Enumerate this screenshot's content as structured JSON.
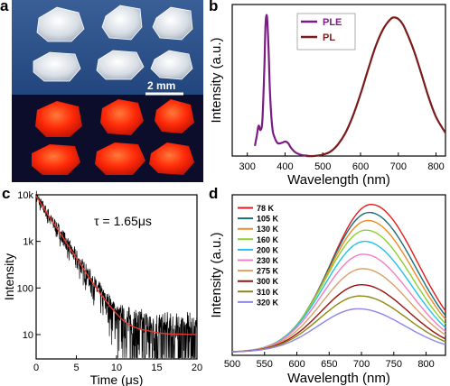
{
  "figure": {
    "panel_labels": [
      "a",
      "b",
      "c",
      "d"
    ]
  },
  "panel_a": {
    "scale_bar_label": "2 mm",
    "colors": {
      "top_background": "#2c4f86",
      "bottom_background": "#0b0d2a",
      "crystal_white": "#eef2f6",
      "crystal_red": "#ff2a08"
    }
  },
  "chart_data": [
    {
      "panel": "b",
      "type": "line",
      "xlabel": "Wavelength (nm)",
      "ylabel": "Intensity (a.u.)",
      "xlim": [
        260,
        825
      ],
      "ylim": [
        0,
        1.05
      ],
      "xticks": [
        300,
        400,
        500,
        600,
        700,
        800
      ],
      "yticks_visible": false,
      "grid": false,
      "legend_placement": "top-center",
      "series": [
        {
          "name": "PLE",
          "color": "#7b1c85",
          "x": [
            320,
            325,
            330,
            335,
            340,
            345,
            348,
            352,
            356,
            360,
            366,
            372,
            380,
            390,
            400,
            408,
            415,
            425,
            435,
            445,
            455,
            465
          ],
          "y": [
            0.07,
            0.14,
            0.21,
            0.18,
            0.25,
            0.6,
            0.9,
            0.97,
            0.76,
            0.44,
            0.2,
            0.13,
            0.09,
            0.09,
            0.1,
            0.09,
            0.06,
            0.03,
            0.015,
            0.007,
            0.003,
            0.0
          ]
        },
        {
          "name": "PL",
          "color": "#7a1a1a",
          "x": [
            455,
            475,
            500,
            520,
            540,
            560,
            580,
            600,
            620,
            640,
            660,
            680,
            690,
            700,
            710,
            720,
            740,
            760,
            780,
            800,
            825
          ],
          "y": [
            0.0,
            0.0,
            0.01,
            0.03,
            0.08,
            0.16,
            0.28,
            0.43,
            0.6,
            0.76,
            0.88,
            0.95,
            0.96,
            0.95,
            0.92,
            0.87,
            0.74,
            0.58,
            0.41,
            0.27,
            0.16
          ]
        }
      ]
    },
    {
      "panel": "c",
      "type": "line",
      "xlabel": "Time (μs)",
      "ylabel": "Intensity",
      "yscale": "log",
      "xlim": [
        0,
        20
      ],
      "ylim": [
        3,
        10000
      ],
      "xticks": [
        0,
        5,
        10,
        15,
        20
      ],
      "yticks": [
        10,
        100,
        1000,
        10000
      ],
      "yticklabels": [
        "10",
        "100",
        "1k",
        "10k"
      ],
      "annotation": "τ = 1.65μs",
      "grid": false,
      "series": [
        {
          "kind": "noisy-data",
          "color": "#000000",
          "x": [
            0,
            1,
            2,
            3,
            4,
            5,
            6,
            7,
            8,
            9,
            10,
            11,
            12,
            13,
            14,
            15,
            16,
            17,
            18,
            19,
            20
          ],
          "y": [
            9500,
            5000,
            2700,
            1500,
            800,
            440,
            240,
            132,
            75,
            45,
            28,
            19,
            15,
            13,
            12,
            11,
            10.5,
            10.3,
            10.2,
            10.1,
            10
          ],
          "noise_band": [
            0.45,
            0.5,
            0.55,
            0.6,
            0.65,
            0.7,
            0.75,
            0.8,
            0.9,
            1.0,
            1.2,
            1.5,
            2.0,
            2.3,
            2.4,
            2.5,
            2.5,
            2.5,
            2.5,
            2.5,
            2.5
          ]
        },
        {
          "kind": "fit",
          "color": "#e8372e",
          "x": [
            0,
            1,
            2,
            3,
            4,
            5,
            6,
            7,
            8,
            9,
            10,
            11,
            12,
            13,
            14,
            15,
            16,
            17,
            18,
            19,
            20
          ],
          "y": [
            9500,
            5000,
            2700,
            1500,
            800,
            440,
            240,
            132,
            75,
            45,
            28,
            19,
            15,
            13,
            12,
            11,
            10.5,
            10.3,
            10.2,
            10.1,
            10
          ]
        }
      ]
    },
    {
      "panel": "d",
      "type": "line",
      "xlabel": "Wavelength (nm)",
      "ylabel": "Intensity (a.u.)",
      "xlim": [
        500,
        830
      ],
      "ylim": [
        0,
        1.0
      ],
      "xticks": [
        500,
        550,
        600,
        650,
        700,
        750,
        800
      ],
      "yticks_visible": false,
      "grid": false,
      "legend_placement": "top-left",
      "series": [
        {
          "name": "78 K",
          "color": "#e31a1c",
          "peak_x": 715,
          "peak_y": 0.92
        },
        {
          "name": "105 K",
          "color": "#1a6e7a",
          "peak_x": 712,
          "peak_y": 0.87
        },
        {
          "name": "130 K",
          "color": "#f08a24",
          "peak_x": 710,
          "peak_y": 0.82
        },
        {
          "name": "160 K",
          "color": "#8bd12d",
          "peak_x": 707,
          "peak_y": 0.76
        },
        {
          "name": "200 K",
          "color": "#22c2e8",
          "peak_x": 705,
          "peak_y": 0.69
        },
        {
          "name": "230 K",
          "color": "#f47ec4",
          "peak_x": 703,
          "peak_y": 0.61
        },
        {
          "name": "275 K",
          "color": "#d9a06a",
          "peak_x": 702,
          "peak_y": 0.52
        },
        {
          "name": "300 K",
          "color": "#9b1010",
          "peak_x": 700,
          "peak_y": 0.42
        },
        {
          "name": "310 K",
          "color": "#8a8a10",
          "peak_x": 698,
          "peak_y": 0.35
        },
        {
          "name": "320 K",
          "color": "#8f86e8",
          "peak_x": 695,
          "peak_y": 0.27
        }
      ]
    }
  ]
}
